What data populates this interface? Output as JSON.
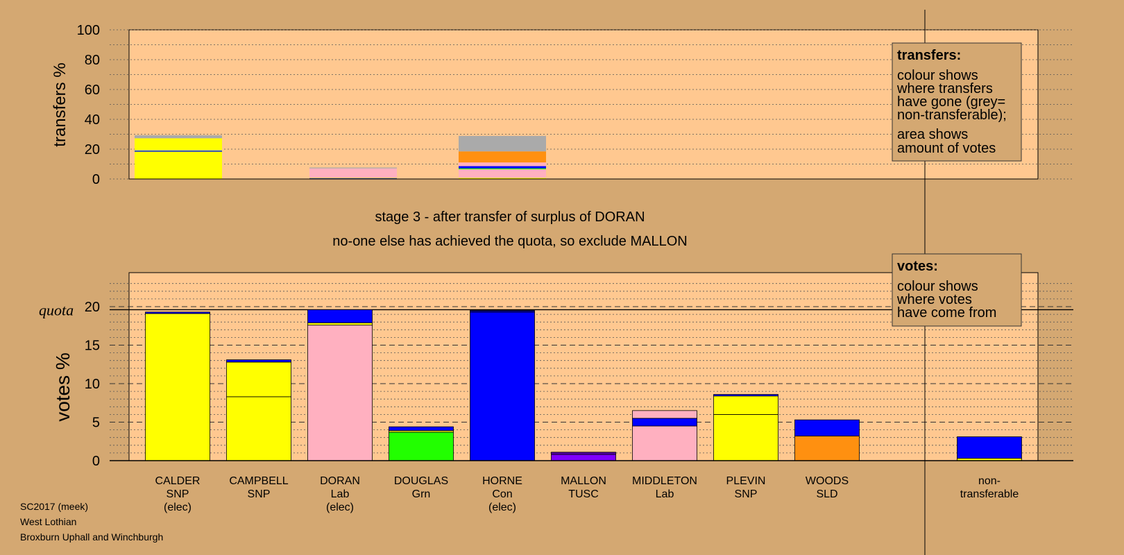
{
  "chart_data": {
    "type": "bar",
    "stage_title": "stage 3 - after transfer of surplus of DORAN",
    "stage_subtitle": "no-one else has achieved the quota, so exclude MALLON",
    "quota_label": "quota",
    "quota_value": 19.6,
    "colors": {
      "SNP": "#ffff00",
      "Lab": "#ffb0c0",
      "Grn": "#22ff00",
      "Con": "#0000ff",
      "TUSC": "#8000ff",
      "SLD": "#ff9010",
      "non-transferable": "#aaaaaa",
      "panel": "#ffc890",
      "background": "#d4a872"
    },
    "transfers_chart": {
      "ylabel": "transfers %",
      "ylim": [
        0,
        100
      ],
      "yticks": [
        "0",
        "20",
        "40",
        "60",
        "80",
        "100"
      ],
      "bars": [
        {
          "candidate": "CALDER",
          "segments": [
            {
              "color": "#ffff00",
              "value": 18.3
            },
            {
              "color": "#0000ff",
              "value": 0.6
            },
            {
              "color": "#22ff00",
              "value": 0.3
            },
            {
              "color": "#ffb0c0",
              "value": 0.3
            },
            {
              "color": "#ffff00",
              "value": 7.8
            },
            {
              "color": "#aaaaaa",
              "value": 2.0
            }
          ]
        },
        {
          "candidate": "DORAN",
          "segments": [
            {
              "color": "#22ff00",
              "value": 0.3
            },
            {
              "color": "#0000ff",
              "value": 0.3
            },
            {
              "color": "#ffff00",
              "value": 0.3
            },
            {
              "color": "#ffb0c0",
              "value": 6.2
            },
            {
              "color": "#aaaaaa",
              "value": 0.6
            }
          ]
        },
        {
          "candidate": "HORNE",
          "segments": [
            {
              "color": "#ffff00",
              "value": 0.8
            },
            {
              "color": "#ffb0c0",
              "value": 5.7
            },
            {
              "color": "#22ff00",
              "value": 0.6
            },
            {
              "color": "#0000ff",
              "value": 1.5
            },
            {
              "color": "#ffb0c0",
              "value": 2.5
            },
            {
              "color": "#ff9010",
              "value": 7.4
            },
            {
              "color": "#aaaaaa",
              "value": 10.4
            }
          ]
        }
      ]
    },
    "votes_chart": {
      "ylabel": "votes %",
      "ylim": [
        0,
        25
      ],
      "yticks": [
        "0",
        "5",
        "10",
        "15",
        "20"
      ],
      "candidates": [
        {
          "name": "CALDER",
          "party": "SNP",
          "status": "(elec)",
          "segments": [
            {
              "color": "#ffff00",
              "value": 19.1
            },
            {
              "color": "#0000ff",
              "value": 0.2
            }
          ]
        },
        {
          "name": "CAMPBELL",
          "party": "SNP",
          "status": "",
          "segments": [
            {
              "color": "#ffff00",
              "value": 8.3
            },
            {
              "color": "#ffff00",
              "value": 4.5
            },
            {
              "color": "#0000ff",
              "value": 0.3
            }
          ]
        },
        {
          "name": "DORAN",
          "party": "Lab",
          "status": "(elec)",
          "segments": [
            {
              "color": "#ffb0c0",
              "value": 17.6
            },
            {
              "color": "#ffff00",
              "value": 0.3
            },
            {
              "color": "#0000ff",
              "value": 1.7
            }
          ]
        },
        {
          "name": "DOUGLAS",
          "party": "Grn",
          "status": "",
          "segments": [
            {
              "color": "#22ff00",
              "value": 3.7
            },
            {
              "color": "#ffff00",
              "value": 0.2
            },
            {
              "color": "#0000ff",
              "value": 0.5
            }
          ]
        },
        {
          "name": "HORNE",
          "party": "Con",
          "status": "(elec)",
          "segments": [
            {
              "color": "#0000ff",
              "value": 19.3
            },
            {
              "color": "#0000a0",
              "value": 0.2
            }
          ]
        },
        {
          "name": "MALLON",
          "party": "TUSC",
          "status": "",
          "segments": [
            {
              "color": "#8000ff",
              "value": 0.8
            },
            {
              "color": "#5000a0",
              "value": 0.3
            }
          ]
        },
        {
          "name": "MIDDLETON",
          "party": "Lab",
          "status": "",
          "segments": [
            {
              "color": "#ffb0c0",
              "value": 4.5
            },
            {
              "color": "#0000ff",
              "value": 1.0
            },
            {
              "color": "#ffb0c0",
              "value": 1.0
            }
          ]
        },
        {
          "name": "PLEVIN",
          "party": "SNP",
          "status": "",
          "segments": [
            {
              "color": "#ffff00",
              "value": 6.0
            },
            {
              "color": "#ffff00",
              "value": 2.4
            },
            {
              "color": "#0000ff",
              "value": 0.2
            }
          ]
        },
        {
          "name": "WOODS",
          "party": "SLD",
          "status": "",
          "segments": [
            {
              "color": "#ff9010",
              "value": 3.2
            },
            {
              "color": "#0000ff",
              "value": 2.1
            }
          ]
        },
        {
          "name": "non-",
          "party": "transferable",
          "status": "",
          "segments": [
            {
              "color": "#ffff00",
              "value": 0.3
            },
            {
              "color": "#0000ff",
              "value": 2.8
            }
          ]
        }
      ]
    },
    "legend_transfers": {
      "title": "transfers:",
      "lines1": [
        "colour shows",
        "where transfers",
        "have gone (grey=",
        "non-transferable);"
      ],
      "lines2": [
        "area shows",
        "amount of votes"
      ]
    },
    "legend_votes": {
      "title": "votes:",
      "lines": [
        "colour shows",
        "where votes",
        "have come from"
      ]
    }
  },
  "footer": {
    "line1": "SC2017 (meek)",
    "line2": "West Lothian",
    "line3": "Broxburn Uphall and Winchburgh"
  }
}
